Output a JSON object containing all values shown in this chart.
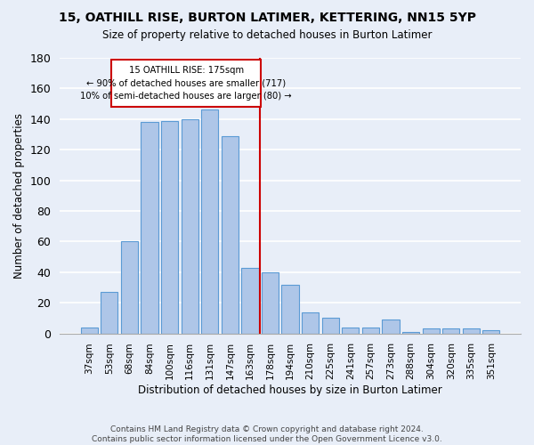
{
  "title": "15, OATHILL RISE, BURTON LATIMER, KETTERING, NN15 5YP",
  "subtitle": "Size of property relative to detached houses in Burton Latimer",
  "xlabel": "Distribution of detached houses by size in Burton Latimer",
  "ylabel": "Number of detached properties",
  "categories": [
    "37sqm",
    "53sqm",
    "68sqm",
    "84sqm",
    "100sqm",
    "116sqm",
    "131sqm",
    "147sqm",
    "163sqm",
    "178sqm",
    "194sqm",
    "210sqm",
    "225sqm",
    "241sqm",
    "257sqm",
    "273sqm",
    "288sqm",
    "304sqm",
    "320sqm",
    "335sqm",
    "351sqm"
  ],
  "values": [
    4,
    27,
    60,
    138,
    139,
    140,
    146,
    129,
    43,
    40,
    32,
    14,
    10,
    4,
    4,
    9,
    1,
    3,
    3,
    3,
    2
  ],
  "bar_color": "#aec6e8",
  "bar_edge_color": "#5b9bd5",
  "vline_color": "#cc0000",
  "annotation_line1": "15 OATHILL RISE: 175sqm",
  "annotation_line2": "← 90% of detached houses are smaller (717)",
  "annotation_line3": "10% of semi-detached houses are larger (80) →",
  "annotation_box_color": "#cc0000",
  "background_color": "#e8eef8",
  "grid_color": "#ffffff",
  "ylim": [
    0,
    180
  ],
  "yticks": [
    0,
    20,
    40,
    60,
    80,
    100,
    120,
    140,
    160,
    180
  ],
  "footer_line1": "Contains HM Land Registry data © Crown copyright and database right 2024.",
  "footer_line2": "Contains public sector information licensed under the Open Government Licence v3.0."
}
